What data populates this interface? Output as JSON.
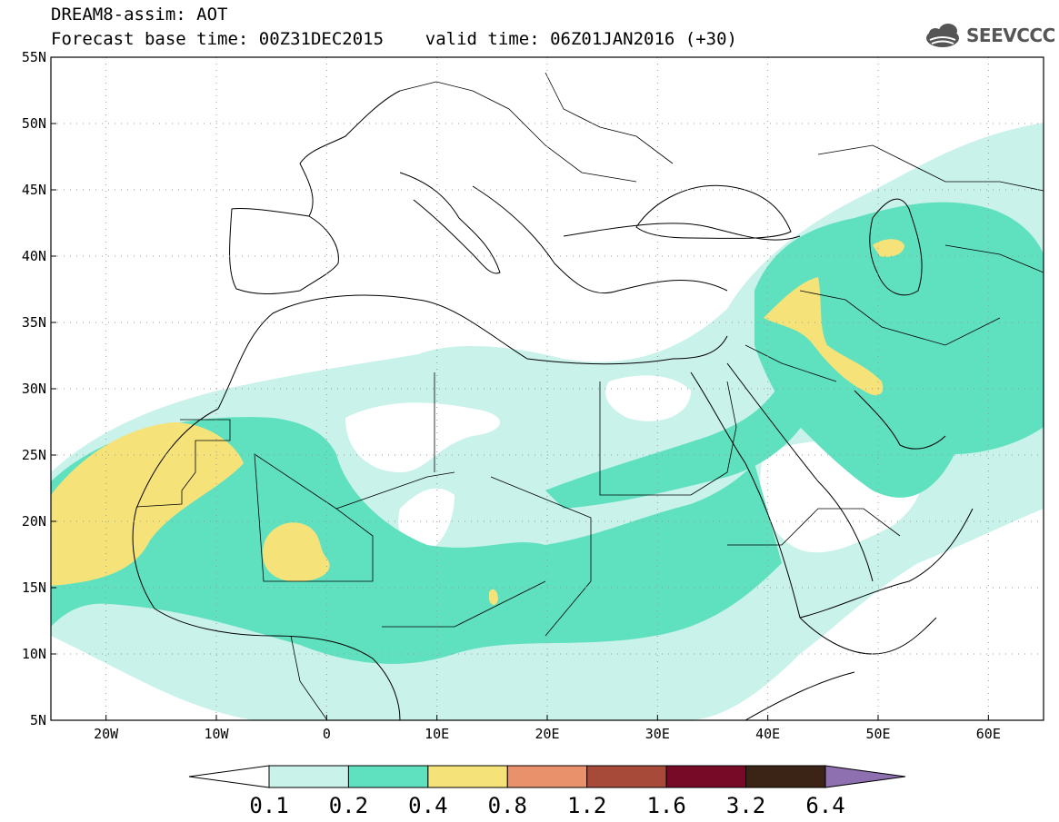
{
  "header": {
    "line1": "DREAM8-assim: AOT",
    "line2": "Forecast base time: 00Z31DEC2015    valid time: 06Z01JAN2016 (+30)"
  },
  "logo": {
    "text": "SEEVCCC",
    "icon": "cloud-icon"
  },
  "map": {
    "lon_range": [
      -25,
      65
    ],
    "lat_range": [
      5,
      55
    ],
    "lat_ticks": [
      "5N",
      "10N",
      "15N",
      "20N",
      "25N",
      "30N",
      "35N",
      "40N",
      "45N",
      "50N",
      "55N"
    ],
    "lon_ticks": [
      "20W",
      "10W",
      "0",
      "10E",
      "20E",
      "30E",
      "40E",
      "50E",
      "60E"
    ],
    "grid": "dotted"
  },
  "colorbar": {
    "colors": [
      "#ffffff",
      "#c9f2ea",
      "#5fe0bf",
      "#f5e37a",
      "#e8916a",
      "#a84a3a",
      "#760a27",
      "#3b2416",
      "#8e6fb0"
    ],
    "labels": [
      "0.1",
      "0.2",
      "0.4",
      "0.8",
      "1.2",
      "1.6",
      "3.2",
      "6.4"
    ]
  }
}
